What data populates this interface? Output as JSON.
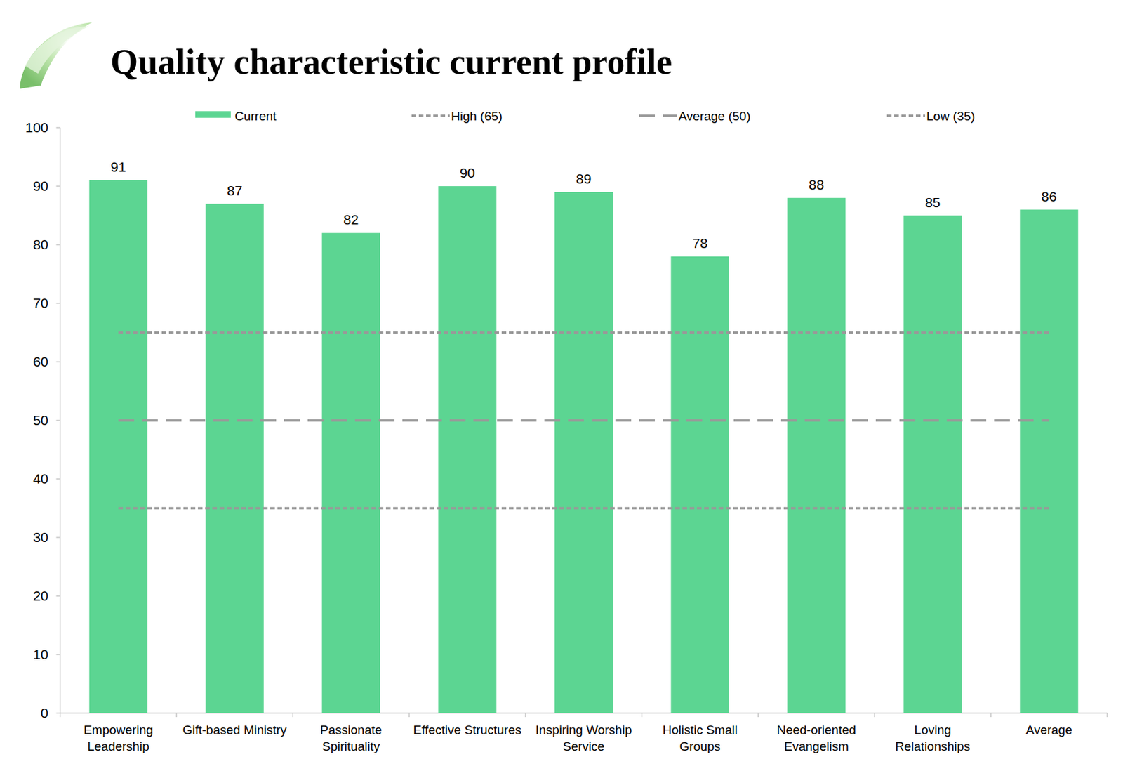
{
  "chart_data": {
    "type": "bar",
    "title": "Quality characteristic current profile",
    "categories": [
      "Empowering Leadership",
      "Gift-based Ministry",
      "Passionate Spirituality",
      "Effective Structures",
      "Inspiring Worship Service",
      "Holistic Small Groups",
      "Need-oriented Evangelism",
      "Loving Relationships",
      "Average"
    ],
    "series": [
      {
        "name": "Current",
        "type": "bar",
        "color": "#5cd592",
        "values": [
          91,
          87,
          82,
          90,
          89,
          78,
          88,
          85,
          86
        ]
      },
      {
        "name": "High (65)",
        "type": "line",
        "color": "#999999",
        "line_style": "dotted",
        "values": [
          65,
          65,
          65,
          65,
          65,
          65,
          65,
          65,
          65
        ]
      },
      {
        "name": "Average (50)",
        "type": "line",
        "color": "#999999",
        "line_style": "dashed",
        "values": [
          50,
          50,
          50,
          50,
          50,
          50,
          50,
          50,
          50
        ]
      },
      {
        "name": "Low (35)",
        "type": "line",
        "color": "#999999",
        "line_style": "dotted",
        "values": [
          35,
          35,
          35,
          35,
          35,
          35,
          35,
          35,
          35
        ]
      }
    ],
    "ylim": [
      0,
      100
    ],
    "yticks": [
      0,
      10,
      20,
      30,
      40,
      50,
      60,
      70,
      80,
      90,
      100
    ],
    "grid": false,
    "legend": "top",
    "data_labels": true
  }
}
